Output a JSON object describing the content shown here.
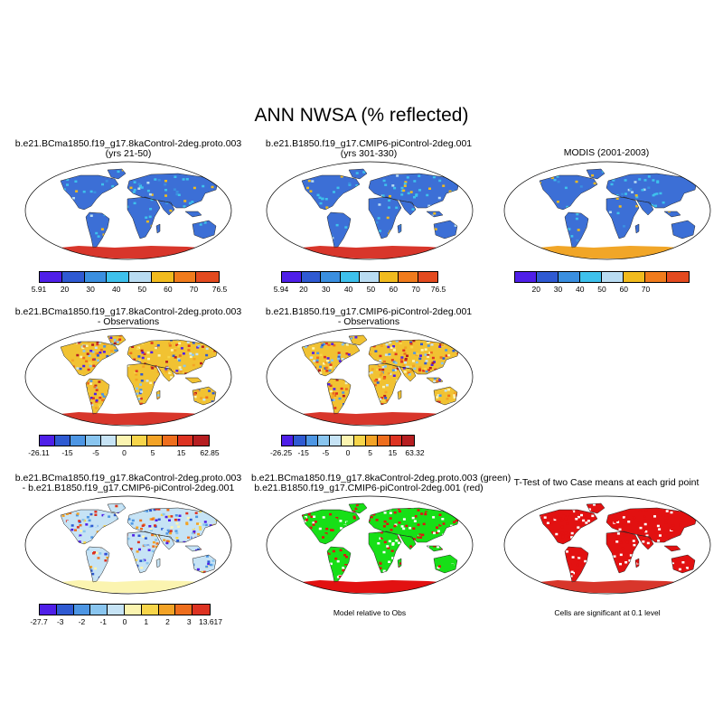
{
  "title": "ANN NWSA (% reflected)",
  "colors": {
    "land_blue": "#3c6fd6",
    "ocean": "#ffffff",
    "ant_red": "#d8362b",
    "ant_orange": "#f1a628",
    "scale_abs": [
      "#4f1fe8",
      "#2f5ad2",
      "#3a8fe0",
      "#3ec1ec",
      "#b9dcf2",
      "#f1bb1e",
      "#f07b1c",
      "#e34a1f",
      "#cc2a26"
    ],
    "scale_diff": [
      "#4f1fe8",
      "#2f5ad2",
      "#4d96e4",
      "#89c5ef",
      "#c6e3f5",
      "#fbf4b0",
      "#f7d54a",
      "#f3a326",
      "#ee6e1d",
      "#dd3322",
      "#b61e21"
    ],
    "scale_diff2": [
      "#4f1fe8",
      "#2f5ad2",
      "#4d96e4",
      "#89c5ef",
      "#c6e3f5",
      "#fbf4b0",
      "#f7d54a",
      "#f3a326",
      "#ee6e1d",
      "#dd3322"
    ],
    "green": "#17df17",
    "red": "#e21111"
  },
  "panels": [
    {
      "id": "case1",
      "title_line1": "b.e21.BCma1850.f19_g17.8kaControl-2deg.proto.003",
      "title_line2": "(yrs 21-50)",
      "style": "abs",
      "colorbar_labels": [
        "5.91",
        "20",
        "30",
        "40",
        "50",
        "60",
        "70",
        "76.5"
      ]
    },
    {
      "id": "case2",
      "title_line1": "b.e21.B1850.f19_g17.CMIP6-piControl-2deg.001",
      "title_line2": "(yrs 301-330)",
      "style": "abs",
      "colorbar_labels": [
        "5.94",
        "20",
        "30",
        "40",
        "50",
        "60",
        "70",
        "76.5"
      ]
    },
    {
      "id": "obs",
      "title_line1": "MODIS (2001-2003)",
      "title_line2": "",
      "style": "obs",
      "colorbar_labels": [
        "20",
        "30",
        "40",
        "50",
        "60",
        "70"
      ]
    },
    {
      "id": "case1-obs",
      "title_line1": "b.e21.BCma1850.f19_g17.8kaControl-2deg.proto.003",
      "title_line2": "- Observations",
      "style": "diff",
      "colorbar_labels": [
        "-26.11",
        "-15",
        "-5",
        "0",
        "5",
        "15",
        "62.85"
      ]
    },
    {
      "id": "case2-obs",
      "title_line1": "b.e21.B1850.f19_g17.CMIP6-piControl-2deg.001",
      "title_line2": "- Observations",
      "style": "diff",
      "colorbar_labels": [
        "-26.25",
        "-15",
        "-5",
        "0",
        "5",
        "15",
        "63.32"
      ]
    },
    {
      "id": "case1-case2",
      "title_line1": "b.e21.BCma1850.f19_g17.8kaControl-2deg.proto.003",
      "title_line2": "- b.e21.B1850.f19_g17.CMIP6-piControl-2deg.001",
      "style": "diff2",
      "colorbar_labels": [
        "-27.7",
        "-3",
        "-2",
        "-1",
        "0",
        "1",
        "2",
        "3",
        "13.617"
      ]
    },
    {
      "id": "relative",
      "title_line1": "b.e21.BCma1850.f19_g17.8kaControl-2deg.proto.003 (green)",
      "title_line2": "b.e21.B1850.f19_g17.CMIP6-piControl-2deg.001 (red)",
      "style": "relative",
      "caption": "Model relative to Obs"
    },
    {
      "id": "ttest",
      "title_line1": "T-Test of two Case means at each grid point",
      "title_line2": "",
      "style": "ttest",
      "caption": "Cells are significant at 0.1 level"
    }
  ]
}
